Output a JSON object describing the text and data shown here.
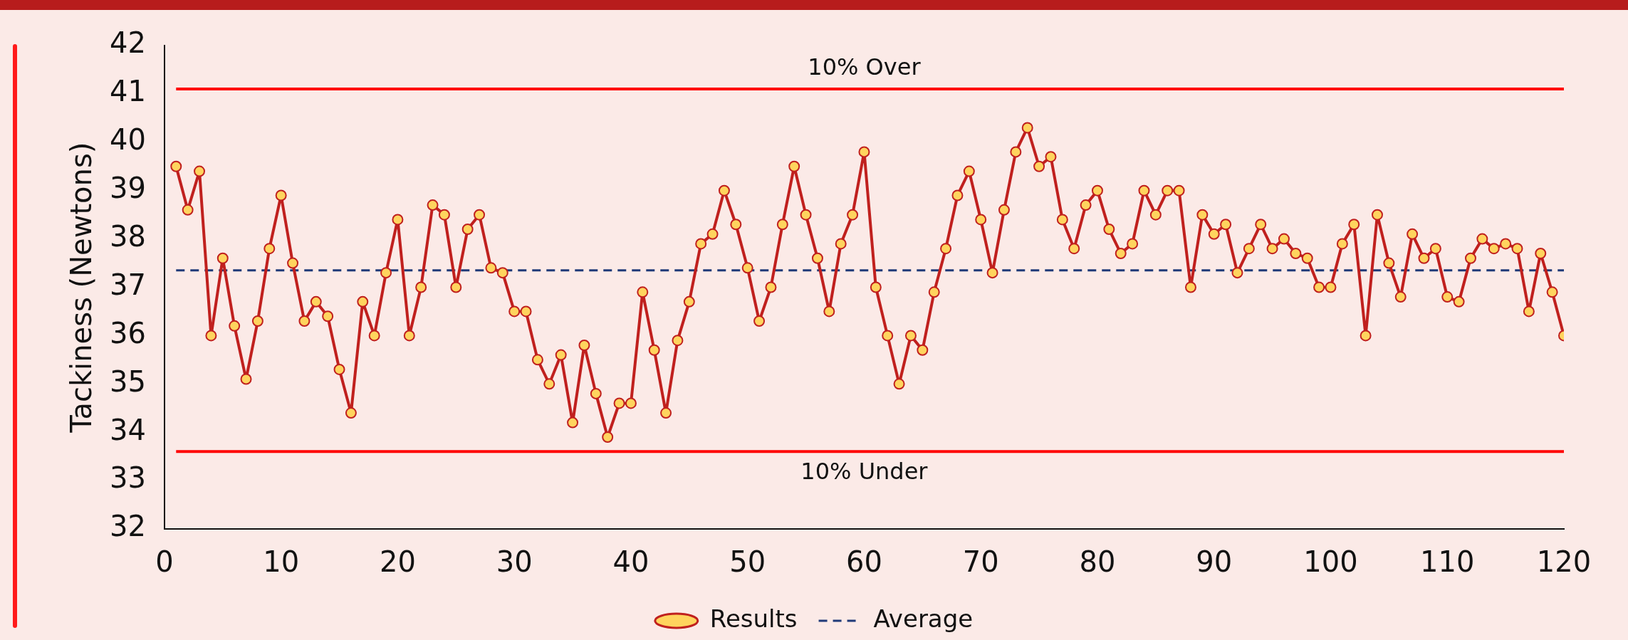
{
  "chart_data": {
    "type": "line",
    "ylabel": "Tackiness (Newtons)",
    "x": [
      1,
      2,
      3,
      4,
      5,
      6,
      7,
      8,
      9,
      10,
      11,
      12,
      13,
      14,
      15,
      16,
      17,
      18,
      19,
      20,
      21,
      22,
      23,
      24,
      25,
      26,
      27,
      28,
      29,
      30,
      31,
      32,
      33,
      34,
      35,
      36,
      37,
      38,
      39,
      40,
      41,
      42,
      43,
      44,
      45,
      46,
      47,
      48,
      49,
      50,
      51,
      52,
      53,
      54,
      55,
      56,
      57,
      58,
      59,
      60,
      61,
      62,
      63,
      64,
      65,
      66,
      67,
      68,
      69,
      70,
      71,
      72,
      73,
      74,
      75,
      76,
      77,
      78,
      79,
      80,
      81,
      82,
      83,
      84,
      85,
      86,
      87,
      88,
      89,
      90,
      91,
      92,
      93,
      94,
      95,
      96,
      97,
      98,
      99,
      100,
      101,
      102,
      103,
      104,
      105,
      106,
      107,
      108,
      109,
      110,
      111,
      112,
      113,
      114,
      115,
      116,
      117,
      118,
      119,
      120
    ],
    "series": [
      {
        "name": "Results",
        "color": "#c0201e",
        "marker": "circle",
        "line_style": "solid",
        "values": [
          39.5,
          38.6,
          39.4,
          36.0,
          37.6,
          36.2,
          35.1,
          36.3,
          37.8,
          38.9,
          37.5,
          36.3,
          36.7,
          36.4,
          35.3,
          34.4,
          36.7,
          36.0,
          37.3,
          38.4,
          36.0,
          37.0,
          38.7,
          38.5,
          37.0,
          38.2,
          38.5,
          37.4,
          37.3,
          36.5,
          36.5,
          35.5,
          35.0,
          35.6,
          34.2,
          35.8,
          34.8,
          33.9,
          34.6,
          34.6,
          36.9,
          35.7,
          34.4,
          35.9,
          36.7,
          37.9,
          38.1,
          39.0,
          38.3,
          37.4,
          36.3,
          37.0,
          38.3,
          39.5,
          38.5,
          37.6,
          36.5,
          37.9,
          38.5,
          39.8,
          37.0,
          36.0,
          35.0,
          36.0,
          35.7,
          36.9,
          37.8,
          38.9,
          39.4,
          38.4,
          37.3,
          38.6,
          39.8,
          40.3,
          39.5,
          39.7,
          38.4,
          37.8,
          38.7,
          39.0,
          38.2,
          37.7,
          37.9,
          39.0,
          38.5,
          39.0,
          39.0,
          37.0,
          38.5,
          38.1,
          38.3,
          37.3,
          37.8,
          38.3,
          37.8,
          38.0,
          37.7,
          37.6,
          37.0,
          37.0,
          37.9,
          38.3,
          36.0,
          38.5,
          37.5,
          36.8,
          38.1,
          37.6,
          37.8,
          36.8,
          36.7,
          37.6,
          38.0,
          37.8,
          37.9,
          37.8,
          36.5,
          37.7,
          36.9,
          36.0
        ]
      },
      {
        "name": "Average",
        "color": "#1f3a78",
        "marker": "none",
        "line_style": "dashed",
        "x": [
          1,
          120
        ],
        "values": [
          37.35,
          37.35
        ]
      }
    ],
    "ref_lines": [
      {
        "axis": "y",
        "value": 41.1,
        "label": "10% Over",
        "color": "#ff0000"
      },
      {
        "axis": "y",
        "value": 33.6,
        "label": "10% Under",
        "color": "#ff0000"
      }
    ],
    "xlim": [
      0,
      120
    ],
    "xticks": [
      0,
      10,
      20,
      30,
      40,
      50,
      60,
      70,
      80,
      90,
      100,
      110,
      120
    ],
    "ylim": [
      32,
      42
    ],
    "yticks": [
      32,
      33,
      34,
      35,
      36,
      37,
      38,
      39,
      40,
      41,
      42
    ],
    "grid": false,
    "legend": "bottom"
  }
}
